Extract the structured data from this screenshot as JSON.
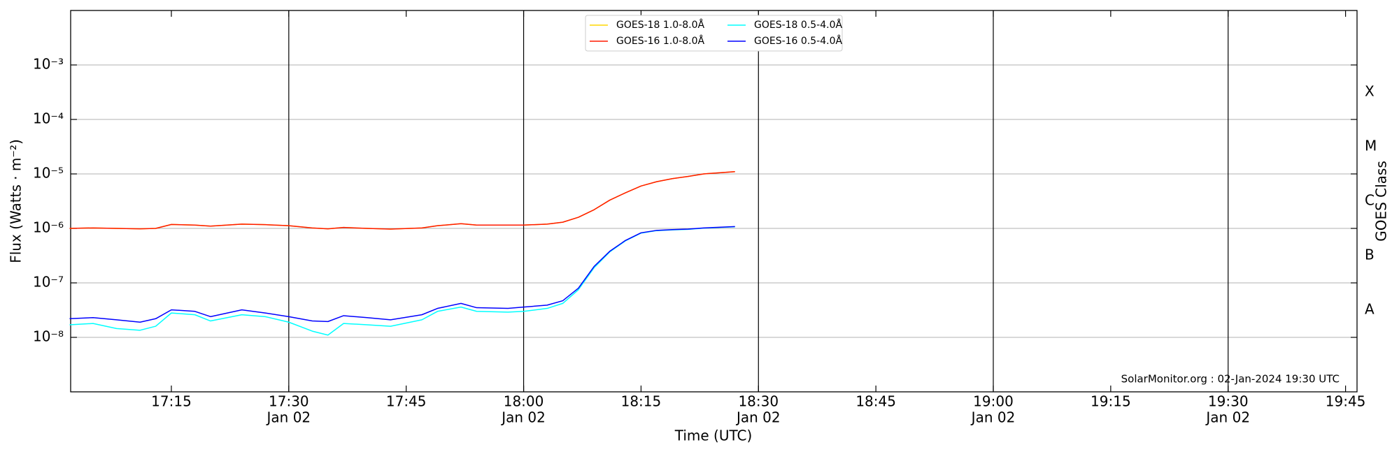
{
  "chart_data": {
    "type": "line",
    "yscale": "log",
    "xlabel": "Time (UTC)",
    "ylabel": "Flux (Watts · m⁻²)",
    "y2label": "GOES Class",
    "annotation": "SolarMonitor.org : 02-Jan-2024 19:30 UTC",
    "legend": "upper center",
    "grid": true,
    "xlim": [
      "17:02:08",
      "19:46:28"
    ],
    "xticks": [
      "17:15",
      "17:30",
      "17:45",
      "18:00",
      "18:15",
      "18:30",
      "18:45",
      "19:00",
      "19:15",
      "19:30",
      "19:45"
    ],
    "xtick_sublabels": [
      null,
      "Jan 02",
      null,
      "Jan 02",
      null,
      "Jan 02",
      null,
      "Jan 02",
      null,
      "Jan 02",
      null
    ],
    "ylim": [
      1e-09,
      0.01
    ],
    "yticks": [
      {
        "value": 0.001,
        "label": "10⁻³"
      },
      {
        "value": 0.0001,
        "label": "10⁻⁴"
      },
      {
        "value": 1e-05,
        "label": "10⁻⁵"
      },
      {
        "value": 1e-06,
        "label": "10⁻⁶"
      },
      {
        "value": 1e-07,
        "label": "10⁻⁷"
      },
      {
        "value": 1e-08,
        "label": "10⁻⁸"
      }
    ],
    "y2lim": [
      1e-09,
      0.01
    ],
    "y2ticks": [
      {
        "value": 3.16e-08,
        "label": "A"
      },
      {
        "value": 3.16e-07,
        "label": "B"
      },
      {
        "value": 3.16e-06,
        "label": "C"
      },
      {
        "value": 3.16e-05,
        "label": "M"
      },
      {
        "value": 0.000316,
        "label": "X"
      }
    ],
    "x": [
      "17:02",
      "17:05",
      "17:08",
      "17:11",
      "17:13",
      "17:15",
      "17:18",
      "17:20",
      "17:24",
      "17:27",
      "17:30",
      "17:33",
      "17:35",
      "17:37",
      "17:40",
      "17:43",
      "17:47",
      "17:49",
      "17:52",
      "17:54",
      "17:58",
      "18:00",
      "18:03",
      "18:05",
      "18:07",
      "18:09",
      "18:11",
      "18:13",
      "18:15",
      "18:17",
      "18:19",
      "18:21",
      "18:23",
      "18:25",
      "18:27"
    ],
    "series": [
      {
        "name": "GOES-18 1.0-8.0Å",
        "color": "#ffd700",
        "values": [
          1e-06,
          1.02e-06,
          1e-06,
          9.8e-07,
          1e-06,
          1.18e-06,
          1.15e-06,
          1.1e-06,
          1.2e-06,
          1.17e-06,
          1.12e-06,
          1.02e-06,
          9.8e-07,
          1.04e-06,
          1e-06,
          9.7e-07,
          1.02e-06,
          1.12e-06,
          1.22e-06,
          1.15e-06,
          1.15e-06,
          1.15e-06,
          1.2e-06,
          1.3e-06,
          1.6e-06,
          2.2e-06,
          3.3e-06,
          4.5e-06,
          6e-06,
          7.2e-06,
          8.2e-06,
          9e-06,
          1e-05,
          1.05e-05,
          1.1e-05
        ]
      },
      {
        "name": "GOES-16 1.0-8.0Å",
        "color": "#ff1a00",
        "values": [
          1e-06,
          1.02e-06,
          1e-06,
          9.8e-07,
          1e-06,
          1.18e-06,
          1.15e-06,
          1.1e-06,
          1.2e-06,
          1.17e-06,
          1.12e-06,
          1.02e-06,
          9.8e-07,
          1.04e-06,
          1e-06,
          9.7e-07,
          1.02e-06,
          1.12e-06,
          1.22e-06,
          1.15e-06,
          1.15e-06,
          1.15e-06,
          1.2e-06,
          1.3e-06,
          1.6e-06,
          2.2e-06,
          3.3e-06,
          4.5e-06,
          6e-06,
          7.2e-06,
          8.2e-06,
          9e-06,
          1e-05,
          1.05e-05,
          1.1e-05
        ]
      },
      {
        "name": "GOES-18 0.5-4.0Å",
        "color": "#00ffff",
        "values": [
          1.7e-08,
          1.8e-08,
          1.45e-08,
          1.35e-08,
          1.6e-08,
          2.8e-08,
          2.6e-08,
          2e-08,
          2.6e-08,
          2.4e-08,
          1.9e-08,
          1.3e-08,
          1.1e-08,
          1.8e-08,
          1.7e-08,
          1.6e-08,
          2.1e-08,
          3e-08,
          3.6e-08,
          3e-08,
          2.9e-08,
          3e-08,
          3.4e-08,
          4.2e-08,
          7.5e-08,
          1.9e-07,
          3.7e-07,
          5.9e-07,
          8.2e-07,
          9.1e-07,
          9.4e-07,
          9.6e-07,
          1.01e-06,
          1.04e-06,
          1.07e-06
        ]
      },
      {
        "name": "GOES-16 0.5-4.0Å",
        "color": "#0000ff",
        "values": [
          2.2e-08,
          2.3e-08,
          2.1e-08,
          1.9e-08,
          2.2e-08,
          3.2e-08,
          3e-08,
          2.4e-08,
          3.2e-08,
          2.8e-08,
          2.4e-08,
          2e-08,
          1.95e-08,
          2.5e-08,
          2.3e-08,
          2.1e-08,
          2.6e-08,
          3.4e-08,
          4.2e-08,
          3.5e-08,
          3.4e-08,
          3.6e-08,
          3.9e-08,
          4.7e-08,
          8e-08,
          2e-07,
          3.8e-07,
          6e-07,
          8.3e-07,
          9.2e-07,
          9.5e-07,
          9.7e-07,
          1.02e-06,
          1.05e-06,
          1.08e-06
        ]
      }
    ]
  }
}
